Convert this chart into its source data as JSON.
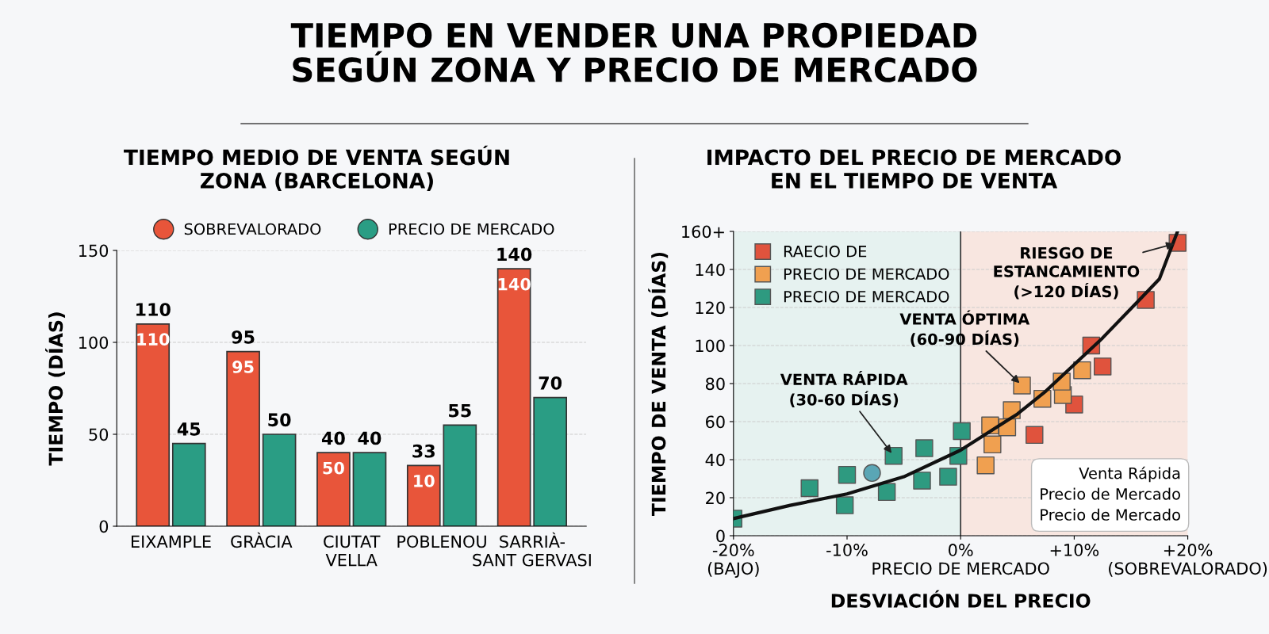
{
  "chart_data": [
    {
      "type": "other",
      "title": "TIEMPO EN VENDER UNA PROPIEDAD\nSEGÚN ZONA Y PRECIO DE MERCADO"
    },
    {
      "type": "bar",
      "title": "TIEMPO MEDIO DE VENTA SEGÚN\nZONA (BARCELONA)",
      "ylabel": "TIEMPO (DÍAS)",
      "categories": [
        "EIXAMPLE",
        "GRÀCIA",
        "CIUTAT\nVELLA",
        "POBLENOU",
        "SARRIÀ-\nSANT GERVASI"
      ],
      "series": [
        {
          "name": "SOBREVALORADO",
          "color": "#e8553a",
          "values": [
            110,
            95,
            40,
            33,
            140
          ],
          "value_labels": [
            "110",
            "95",
            "40",
            "33",
            "140"
          ]
        },
        {
          "name": "PRECIO DE MERCADO",
          "color": "#2a9d84",
          "values": [
            45,
            50,
            40,
            55,
            70
          ],
          "value_labels": [
            "45",
            "50",
            "40",
            "55",
            "70"
          ]
        }
      ],
      "annotations": [
        {
          "text": "110",
          "x": "EIXAMPLE",
          "y": 110
        },
        {
          "text": "95",
          "x": "GRÀCIA",
          "y": 95
        },
        {
          "text": "50",
          "x": "CIUTAT\nVELLA",
          "y": 40
        },
        {
          "text": "10",
          "x": "POBLENOU",
          "y": 33
        },
        {
          "text": "140",
          "x": "SARRIÀ-\nSANT GERVASI",
          "y": 140
        }
      ],
      "ylim": [
        0,
        150
      ],
      "yticks": [
        0,
        50,
        100,
        150
      ],
      "grid": "y",
      "legend": "top"
    },
    {
      "type": "scatter",
      "title": "IMPACTO DEL PRECIO DE MERCADO\nEN EL TIEMPO DE VENTA",
      "xlabel": "DESVIACIÓN DEL PRECIO",
      "ylabel": "TIEMPO DE VENTA (DÍAS)",
      "series": [
        {
          "name": "RAECIO DE",
          "color": "#e0533d",
          "marker": "square",
          "x": [
            6.5,
            10.0,
            11.5,
            12.5,
            16.3,
            19.1
          ],
          "values": [
            53,
            69,
            100,
            89,
            124,
            154
          ]
        },
        {
          "name": "PRECIO DE MERCADO",
          "color": "#f0a050",
          "marker": "square",
          "x": [
            2.2,
            2.8,
            2.6,
            4.1,
            4.5,
            5.4,
            7.2,
            9.0,
            8.9,
            10.7
          ],
          "values": [
            37,
            48,
            58,
            57,
            66,
            79,
            72,
            74,
            81,
            87
          ]
        },
        {
          "name": "PRECIO DE MERCADO",
          "color": "#2e9a80",
          "marker": "square",
          "x": [
            -20,
            -13.3,
            -10.2,
            -10,
            -6.5,
            -5.9,
            -3.4,
            -3.2,
            -1.1,
            0.1,
            -0.2
          ],
          "values": [
            9,
            25,
            16,
            32,
            23,
            42,
            29,
            46,
            31,
            55,
            42
          ]
        },
        {
          "color": "#5aa6b5",
          "marker": "circle",
          "x": [
            -7.8
          ],
          "values": [
            33
          ]
        },
        {
          "type": "line",
          "color": "#111111",
          "marker": "none",
          "x": [
            -20,
            -15,
            -10,
            -5,
            0,
            5,
            7.5,
            10,
            12.5,
            15.9,
            17.5,
            19.1
          ],
          "values": [
            9,
            16,
            22,
            31,
            45,
            64,
            76,
            90,
            104,
            125,
            135,
            160
          ]
        }
      ],
      "xlim": [
        -20,
        20
      ],
      "xticks": [
        {
          "value": -20,
          "label": "-20%\n(BAJO)"
        },
        {
          "value": -10,
          "label": "-10%"
        },
        {
          "value": 0,
          "label": "0%\nPRECIO DE MERCADO"
        },
        {
          "value": 10,
          "label": "+10%"
        },
        {
          "value": 20,
          "label": "+20%\n(SOBREVALORADO)"
        }
      ],
      "ylim": [
        0,
        160
      ],
      "yticks": [
        0,
        20,
        40,
        60,
        80,
        100,
        120,
        140,
        {
          "value": 160,
          "label": "160+"
        }
      ],
      "bands": [
        {
          "axis": "x",
          "from": -20,
          "to": 0,
          "color": "#e6f2f0"
        },
        {
          "axis": "x",
          "from": 0,
          "to": 20,
          "color": "#f8e6e0"
        }
      ],
      "ref_lines": [
        {
          "axis": "x",
          "value": 0,
          "color": "#333333"
        }
      ],
      "annotations": [
        {
          "text": "VENTA RÁPIDA\n(30-60 DÍAS)",
          "x": -5.9,
          "y": 42
        },
        {
          "text": "VENTA ÓPTIMA\n(60-90 DÍAS)",
          "x": 5.4,
          "y": 79
        },
        {
          "text": "RIESGO DE\nESTANCAMIENTO\n(>120 DÍAS)",
          "x": 19.1,
          "y": 154
        },
        "Venta Rápida",
        "Precio de Mercado",
        "Precio de Mercado"
      ],
      "grid": "y",
      "legend": "top left"
    }
  ]
}
